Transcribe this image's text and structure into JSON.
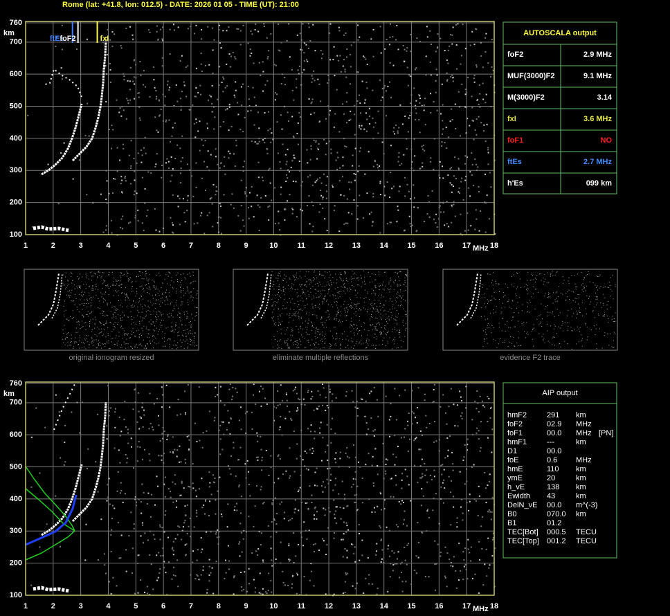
{
  "header": {
    "title": "Rome (lat: +41.8, lon: 012.5) - DATE: 2026 01 05 - TIME (UT): 21:00"
  },
  "ionogram": {
    "height_unit": "km",
    "freq_unit": "MHz",
    "height_ticks": [
      100,
      200,
      300,
      400,
      500,
      600,
      700,
      760
    ],
    "freq_ticks": [
      1,
      2,
      3,
      4,
      5,
      6,
      7,
      8,
      9,
      10,
      11,
      12,
      13,
      14,
      15,
      16,
      17,
      18
    ],
    "markers": [
      {
        "label": "ftEs",
        "freq": 2.7,
        "color": "#3f7fff"
      },
      {
        "label": "foF2",
        "freq": 2.9,
        "color": "#ffffff"
      },
      {
        "label": "fxI",
        "freq": 3.6,
        "color": "#ffff40"
      }
    ]
  },
  "autoscala": {
    "title": "AUTOSCALA output",
    "rows": [
      {
        "label": "foF2",
        "value": "2.9 MHz",
        "color": "#ffffff"
      },
      {
        "label": "MUF(3000)F2",
        "value": "9.1 MHz",
        "color": "#ffffff"
      },
      {
        "label": "M(3000)F2",
        "value": "3.14",
        "color": "#ffffff"
      },
      {
        "label": "fxI",
        "value": "3.6 MHz",
        "color": "#e8e840"
      },
      {
        "label": "foF1",
        "value": "NO",
        "color": "#ff2020"
      },
      {
        "label": "ftEs",
        "value": "2.7 MHz",
        "color": "#3f8fff"
      },
      {
        "label": "h'Es",
        "value": "099    km",
        "color": "#ffffff"
      }
    ]
  },
  "thumbnails": [
    "original ionogram resized",
    "eliminate multiple reflections",
    "evidence F2 trace"
  ],
  "aip": {
    "title": "AIP output",
    "rows": [
      [
        "hmF2",
        "291",
        "km"
      ],
      [
        "foF2",
        "02.9",
        "MHz"
      ],
      [
        "foF1",
        "00.0",
        "MHz",
        "[PN]"
      ],
      [
        "hmF1",
        "---",
        "km"
      ],
      [
        "D1",
        "00.0"
      ],
      [
        "foE",
        "0.6",
        "MHz"
      ],
      [
        "hmE",
        "110",
        "km"
      ],
      [
        "ymE",
        "20",
        "km"
      ],
      [
        "h_vE",
        "138",
        "km"
      ],
      [
        "Ewidth",
        "43",
        "km"
      ],
      [
        "DelN_vE",
        "00.0",
        "m^(-3)"
      ],
      [
        "B0",
        "070.0",
        "km"
      ],
      [
        "B1",
        "01.2"
      ],
      [
        "TEC[Bot]",
        "000.5",
        "TECU"
      ],
      [
        "TEC[Top]",
        "001.2",
        "TECU"
      ]
    ]
  }
}
